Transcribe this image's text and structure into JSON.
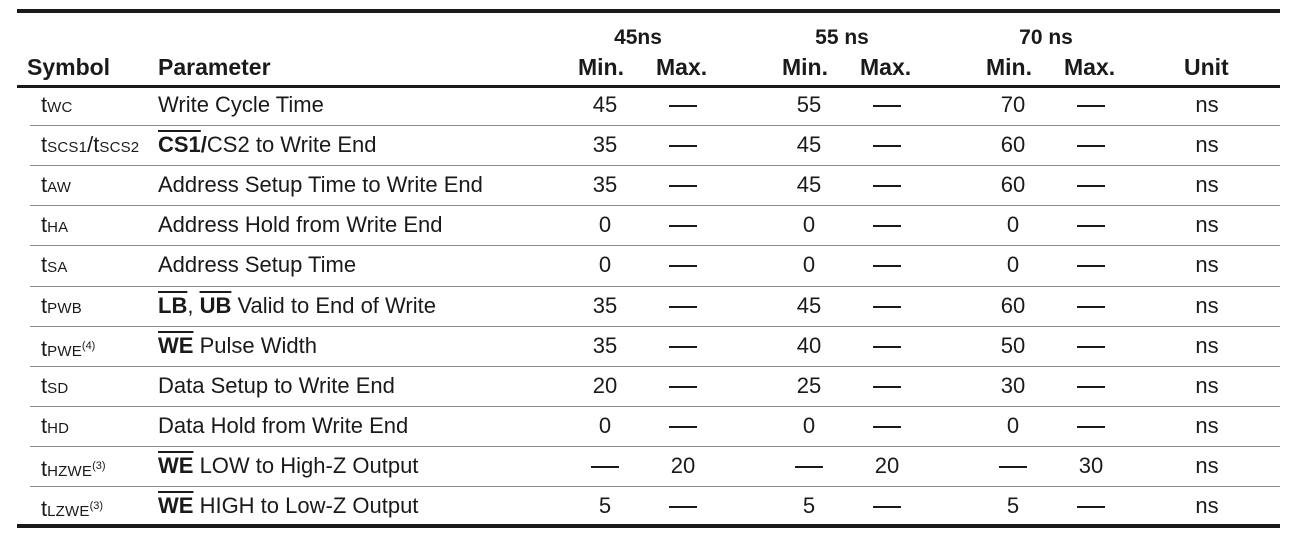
{
  "header": {
    "groups": [
      "45ns",
      "55 ns",
      "70 ns"
    ],
    "symbol": "Symbol",
    "parameter": "Parameter",
    "min": "Min.",
    "max": "Max.",
    "unit": "Unit"
  },
  "rows": [
    {
      "sym": [
        {
          "t": "t"
        },
        {
          "s": "WC"
        }
      ],
      "param": [
        {
          "p": "Write Cycle Time"
        }
      ],
      "v": [
        "45",
        "—",
        "55",
        "—",
        "70",
        "—"
      ],
      "unit": "ns"
    },
    {
      "sym": [
        {
          "t": "t"
        },
        {
          "s": "SCS1"
        },
        {
          "t": "/t"
        },
        {
          "s": "SCS2"
        }
      ],
      "param": [
        {
          "o": "CS1"
        },
        {
          "b": "/"
        },
        {
          "p": "CS2 to Write End"
        }
      ],
      "v": [
        "35",
        "—",
        "45",
        "—",
        "60",
        "—"
      ],
      "unit": "ns"
    },
    {
      "sym": [
        {
          "t": "t"
        },
        {
          "s": "AW"
        }
      ],
      "param": [
        {
          "p": "Address Setup Time to Write End"
        }
      ],
      "v": [
        "35",
        "—",
        "45",
        "—",
        "60",
        "—"
      ],
      "unit": "ns"
    },
    {
      "sym": [
        {
          "t": "t"
        },
        {
          "s": "HA"
        }
      ],
      "param": [
        {
          "p": "Address Hold from Write End"
        }
      ],
      "v": [
        "0",
        "—",
        "0",
        "—",
        "0",
        "—"
      ],
      "unit": "ns"
    },
    {
      "sym": [
        {
          "t": "t"
        },
        {
          "s": "SA"
        }
      ],
      "param": [
        {
          "p": "Address Setup Time"
        }
      ],
      "v": [
        "0",
        "—",
        "0",
        "—",
        "0",
        "—"
      ],
      "unit": "ns"
    },
    {
      "sym": [
        {
          "t": "t"
        },
        {
          "s": "PWB"
        }
      ],
      "param": [
        {
          "o": "LB"
        },
        {
          "p": ", "
        },
        {
          "o": "UB"
        },
        {
          "p": " Valid to End of Write"
        }
      ],
      "v": [
        "35",
        "—",
        "45",
        "—",
        "60",
        "—"
      ],
      "unit": "ns"
    },
    {
      "sym": [
        {
          "t": "t"
        },
        {
          "s": "PWE"
        },
        {
          "u": "(4)"
        }
      ],
      "param": [
        {
          "o": "WE"
        },
        {
          "p": " Pulse Width"
        }
      ],
      "v": [
        "35",
        "—",
        "40",
        "—",
        "50",
        "—"
      ],
      "unit": "ns"
    },
    {
      "sym": [
        {
          "t": "t"
        },
        {
          "s": "SD"
        }
      ],
      "param": [
        {
          "p": "Data Setup to Write End"
        }
      ],
      "v": [
        "20",
        "—",
        "25",
        "—",
        "30",
        "—"
      ],
      "unit": "ns"
    },
    {
      "sym": [
        {
          "t": "t"
        },
        {
          "s": "HD"
        }
      ],
      "param": [
        {
          "p": "Data Hold from Write End"
        }
      ],
      "v": [
        "0",
        "—",
        "0",
        "—",
        "0",
        "—"
      ],
      "unit": "ns"
    },
    {
      "sym": [
        {
          "t": "t"
        },
        {
          "s": "HZWE"
        },
        {
          "u": "(3)"
        }
      ],
      "param": [
        {
          "o": "WE"
        },
        {
          "p": " LOW to High-Z Output"
        }
      ],
      "v": [
        "—",
        "20",
        "—",
        "20",
        "—",
        "30"
      ],
      "unit": "ns"
    },
    {
      "sym": [
        {
          "t": "t"
        },
        {
          "s": "LZWE"
        },
        {
          "u": "(3)"
        }
      ],
      "param": [
        {
          "o": "WE"
        },
        {
          "p": " HIGH to Low-Z Output"
        }
      ],
      "v": [
        "5",
        "—",
        "5",
        "—",
        "5",
        "—"
      ],
      "unit": "ns"
    }
  ]
}
